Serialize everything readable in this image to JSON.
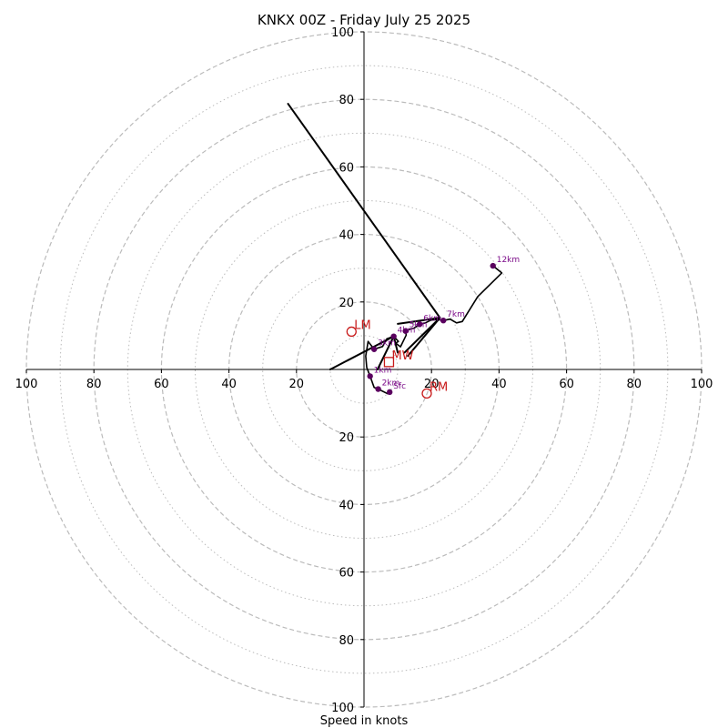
{
  "chart_data": {
    "type": "scatter",
    "title": "KNKX 00Z - Friday July 25 2025",
    "xlabel": "Speed in knots",
    "ylabel": "",
    "xlim": [
      -100,
      100
    ],
    "ylim": [
      -100,
      100
    ],
    "grid": true,
    "ring_radii_major": [
      20,
      40,
      60,
      80,
      100
    ],
    "ring_radii_minor": [
      10,
      30,
      50,
      70,
      90
    ],
    "x_ticks": [
      "100",
      "80",
      "60",
      "40",
      "20",
      "20",
      "40",
      "60",
      "80",
      "100"
    ],
    "x_tick_values": [
      -100,
      -80,
      -60,
      -40,
      -20,
      20,
      40,
      60,
      80,
      100
    ],
    "y_ticks": [
      "100",
      "80",
      "60",
      "40",
      "20",
      "20",
      "40",
      "60",
      "80",
      "100"
    ],
    "y_tick_values": [
      100,
      80,
      60,
      40,
      20,
      -20,
      -40,
      -60,
      -80,
      -100
    ],
    "hodograph": {
      "x": [
        7.6,
        7.0,
        4.2,
        3.0,
        1.8,
        0.8,
        0.5,
        1.2,
        3.0,
        5.5,
        6.8,
        8.8,
        10.2,
        9.4,
        10.8,
        12.5,
        12.3,
        13.8,
        14.8,
        16.5,
        18.2,
        19.8,
        21.6,
        23.5,
        25.5,
        27.4,
        29.1,
        33.7,
        40.8,
        38.2
      ],
      "y": [
        -6.7,
        -7.2,
        -5.8,
        -5.3,
        -2.0,
        0.6,
        4.0,
        8.3,
        6.0,
        6.8,
        9.1,
        9.8,
        8.3,
        7.8,
        6.7,
        10.2,
        11.4,
        12.0,
        12.2,
        13.4,
        13.8,
        14.6,
        14.8,
        14.5,
        14.9,
        13.8,
        14.2,
        21.6,
        28.6,
        30.7
      ]
    },
    "height_markers": [
      {
        "label": "Sfc",
        "x": 7.6,
        "y": -6.7
      },
      {
        "label": "1km",
        "x": 1.8,
        "y": -2.0
      },
      {
        "label": "2km",
        "x": 4.2,
        "y": -5.8
      },
      {
        "label": "3km",
        "x": 3.0,
        "y": 6.0
      },
      {
        "label": "4km",
        "x": 8.8,
        "y": 9.8
      },
      {
        "label": "5km",
        "x": 12.3,
        "y": 11.4
      },
      {
        "label": "6km",
        "x": 16.5,
        "y": 13.4
      },
      {
        "label": "7km",
        "x": 23.5,
        "y": 14.5
      },
      {
        "label": "12km",
        "x": 38.2,
        "y": 30.7
      }
    ],
    "storm_motion": [
      {
        "label": "LM",
        "x": -3.7,
        "y": 11.2,
        "shape": "circle"
      },
      {
        "label": "RM",
        "x": 18.6,
        "y": -7.1,
        "shape": "circle"
      },
      {
        "label": "MW",
        "x": 7.4,
        "y": 2.2,
        "shape": "square"
      }
    ],
    "shear_vectors": [
      {
        "x1": 22.5,
        "y1": 15.3,
        "x2": -22.5,
        "y2": 78.7
      },
      {
        "x1": 22.5,
        "y1": 15.3,
        "x2": 10.0,
        "y2": 13.5
      },
      {
        "x1": 22.5,
        "y1": 15.3,
        "x2": 12.0,
        "y2": 5.0
      },
      {
        "x1": 22.5,
        "y1": 15.3,
        "x2": 13.0,
        "y2": 4.0
      },
      {
        "x1": 8.8,
        "y1": 9.8,
        "x2": 10.0,
        "y2": 5.0
      },
      {
        "x1": 8.8,
        "y1": 9.8,
        "x2": -10.0,
        "y2": 0.0
      },
      {
        "x1": 8.8,
        "y1": 9.8,
        "x2": 4.0,
        "y2": 0.0
      }
    ],
    "colors": {
      "hodograph": "#000000",
      "height_marker": "#5a005f",
      "height_label": "#7b0a88",
      "storm_motion": "#c81a1a",
      "grid": "#bbbbbb",
      "axis": "#000000"
    }
  }
}
